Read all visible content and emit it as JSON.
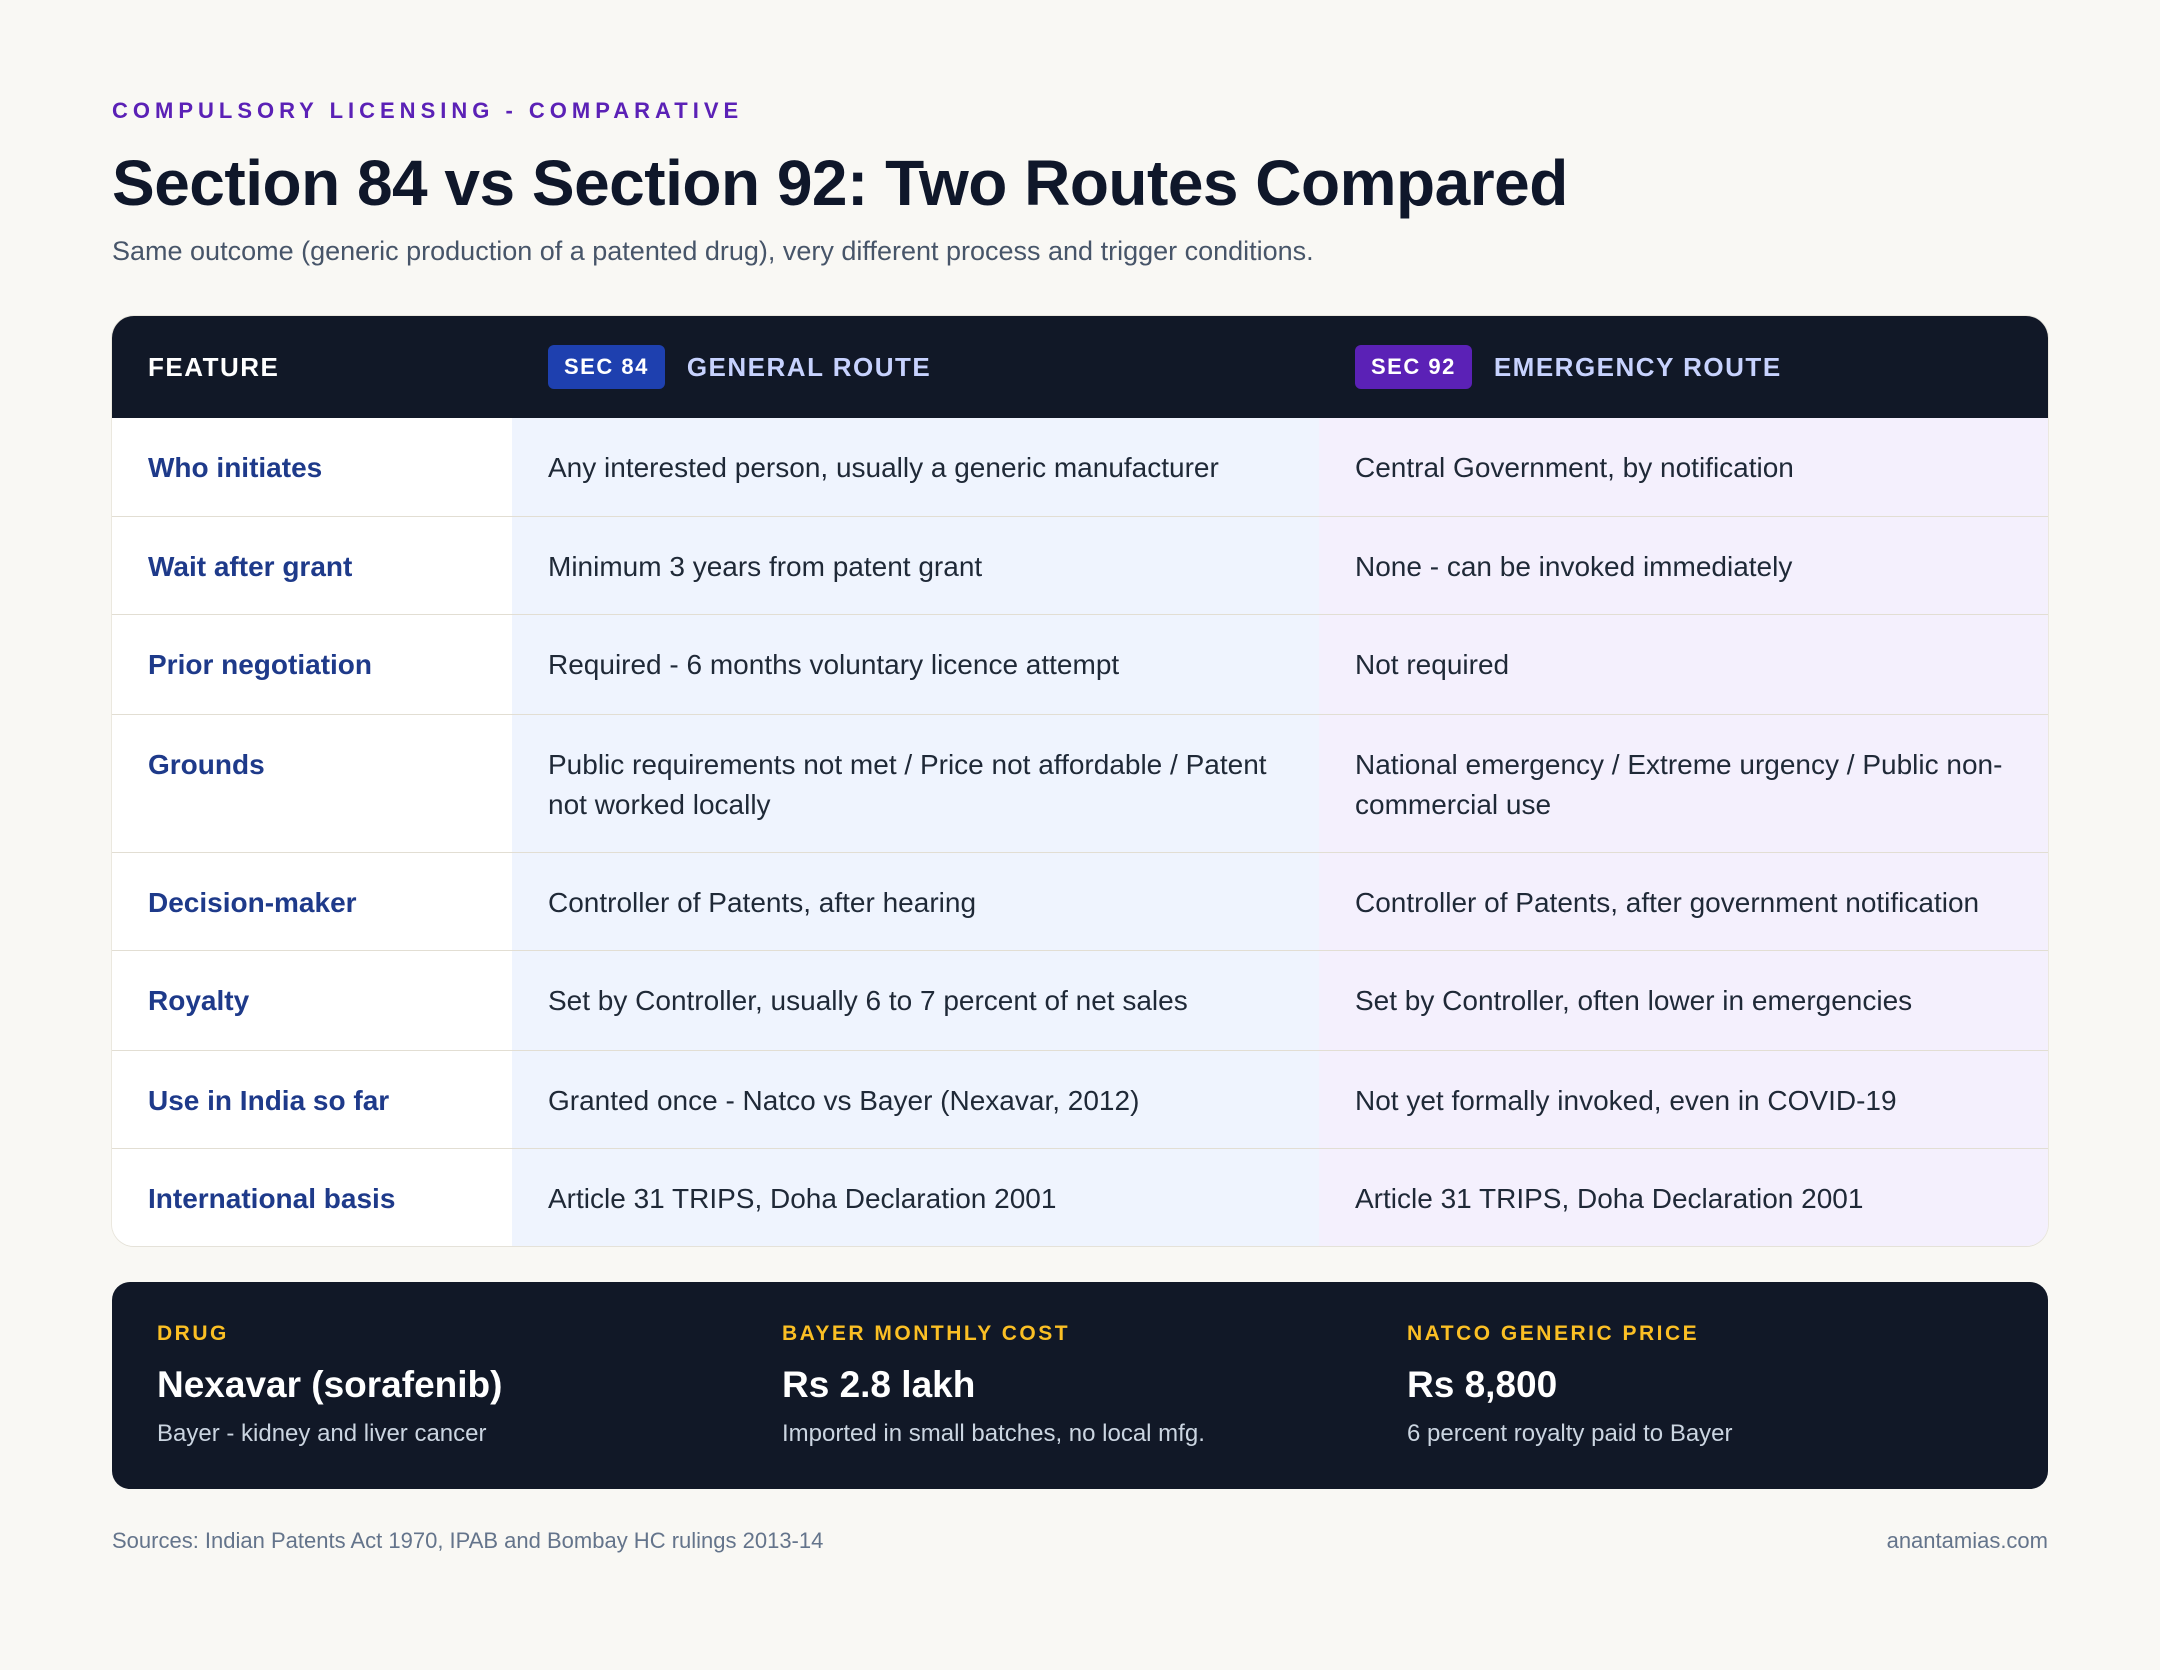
{
  "header": {
    "eyebrow": "COMPULSORY LICENSING - COMPARATIVE",
    "title": "Section 84 vs Section 92: Two Routes Compared",
    "subtitle": "Same outcome (generic production of a patented drug), very different process and trigger conditions."
  },
  "table": {
    "col_feature": "FEATURE",
    "col_a_badge": "SEC 84",
    "col_a_title": "GENERAL ROUTE",
    "col_b_badge": "SEC 92",
    "col_b_title": "EMERGENCY ROUTE",
    "rows": [
      {
        "feature": "Who initiates",
        "sec84": "Any interested person, usually a generic manufacturer",
        "sec92": "Central Government, by notification"
      },
      {
        "feature": "Wait after grant",
        "sec84": "Minimum 3 years from patent grant",
        "sec92": "None - can be invoked immediately"
      },
      {
        "feature": "Prior negotiation",
        "sec84": "Required - 6 months voluntary licence attempt",
        "sec92": "Not required"
      },
      {
        "feature": "Grounds",
        "sec84": "Public requirements not met / Price not affordable / Patent not worked locally",
        "sec92": "National emergency / Extreme urgency / Public non-commercial use"
      },
      {
        "feature": "Decision-maker",
        "sec84": "Controller of Patents, after hearing",
        "sec92": "Controller of Patents, after government notification"
      },
      {
        "feature": "Royalty",
        "sec84": "Set by Controller, usually 6 to 7 percent of net sales",
        "sec92": "Set by Controller, often lower in emergencies"
      },
      {
        "feature": "Use in India so far",
        "sec84": "Granted once - Natco vs Bayer (Nexavar, 2012)",
        "sec92": "Not yet formally invoked, even in COVID-19"
      },
      {
        "feature": "International basis",
        "sec84": "Article 31 TRIPS, Doha Declaration 2001",
        "sec92": "Article 31 TRIPS, Doha Declaration 2001"
      }
    ]
  },
  "stats": [
    {
      "label": "DRUG",
      "value": "Nexavar (sorafenib)",
      "note": "Bayer - kidney and liver cancer"
    },
    {
      "label": "BAYER MONTHLY COST",
      "value": "Rs 2.8 lakh",
      "note": "Imported in small batches, no local mfg."
    },
    {
      "label": "NATCO GENERIC PRICE",
      "value": "Rs 8,800",
      "note": "6 percent royalty paid to Bayer"
    }
  ],
  "footer": {
    "sources": "Sources: Indian Patents Act 1970, IPAB and Bombay HC rulings 2013-14",
    "site": "anantamias.com"
  },
  "colors": {
    "accent_purple": "#5b21b6",
    "accent_blue": "#1e40af",
    "dark_panel": "#111827",
    "stat_label": "#fbbf24"
  }
}
